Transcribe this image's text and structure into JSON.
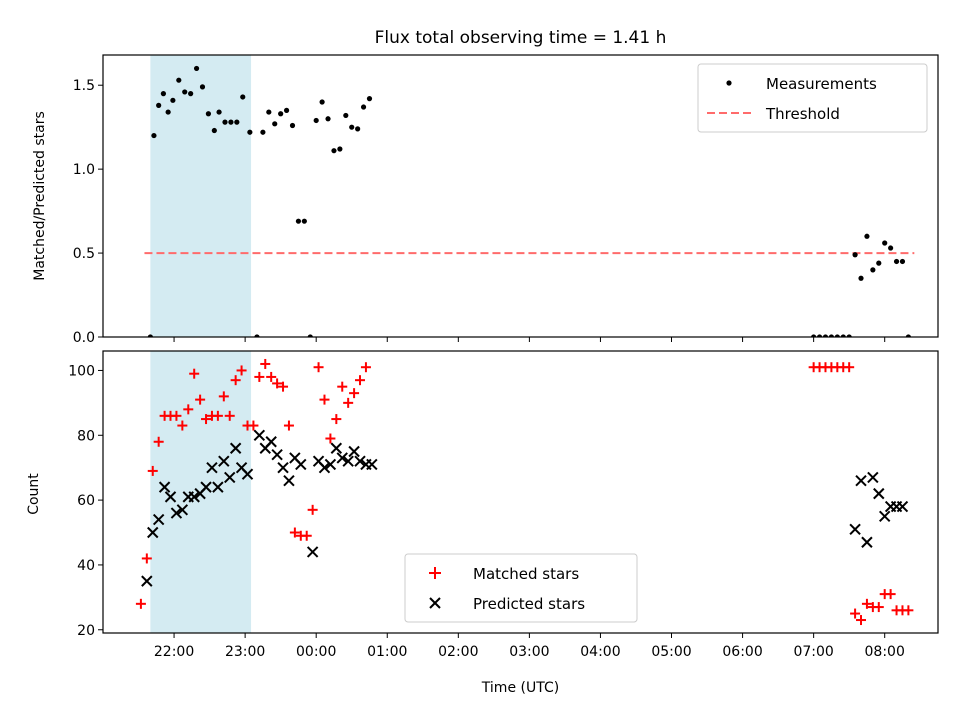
{
  "chart_data": [
    {
      "type": "scatter",
      "title": "Flux total observing time = 1.41 h",
      "xlabel": "",
      "ylabel": "Matched/Predicted stars",
      "xlim": [
        "21:00",
        "08:45"
      ],
      "ylim": [
        0,
        1.68
      ],
      "yticks": [
        0.0,
        0.5,
        1.0,
        1.5
      ],
      "ytick_labels": [
        "0.0",
        "0.5",
        "1.0",
        "1.5"
      ],
      "shaded_region": {
        "x_start": "21:40",
        "x_end": "23:05",
        "color": "#add8e6"
      },
      "legend_position": "upper right",
      "series": [
        {
          "name": "Measurements",
          "marker": "dot",
          "color": "#000000",
          "points": [
            [
              "21:40",
              0.0
            ],
            [
              "21:43",
              1.2
            ],
            [
              "21:47",
              1.38
            ],
            [
              "21:51",
              1.45
            ],
            [
              "21:55",
              1.34
            ],
            [
              "21:59",
              1.41
            ],
            [
              "22:04",
              1.53
            ],
            [
              "22:09",
              1.46
            ],
            [
              "22:14",
              1.45
            ],
            [
              "22:19",
              1.6
            ],
            [
              "22:24",
              1.49
            ],
            [
              "22:29",
              1.33
            ],
            [
              "22:34",
              1.23
            ],
            [
              "22:38",
              1.34
            ],
            [
              "22:43",
              1.28
            ],
            [
              "22:48",
              1.28
            ],
            [
              "22:53",
              1.28
            ],
            [
              "22:58",
              1.43
            ],
            [
              "23:04",
              1.22
            ],
            [
              "23:10",
              0.0
            ],
            [
              "23:15",
              1.22
            ],
            [
              "23:20",
              1.34
            ],
            [
              "23:25",
              1.27
            ],
            [
              "23:30",
              1.33
            ],
            [
              "23:35",
              1.35
            ],
            [
              "23:40",
              1.26
            ],
            [
              "23:45",
              0.69
            ],
            [
              "23:50",
              0.69
            ],
            [
              "23:55",
              0.0
            ],
            [
              "00:00",
              1.29
            ],
            [
              "00:05",
              1.4
            ],
            [
              "00:10",
              1.3
            ],
            [
              "00:15",
              1.11
            ],
            [
              "00:20",
              1.12
            ],
            [
              "00:25",
              1.32
            ],
            [
              "00:30",
              1.25
            ],
            [
              "00:35",
              1.24
            ],
            [
              "00:40",
              1.37
            ],
            [
              "00:45",
              1.42
            ],
            [
              "07:00",
              0.0
            ],
            [
              "07:05",
              0.0
            ],
            [
              "07:10",
              0.0
            ],
            [
              "07:15",
              0.0
            ],
            [
              "07:20",
              0.0
            ],
            [
              "07:25",
              0.0
            ],
            [
              "07:30",
              0.0
            ],
            [
              "07:35",
              0.49
            ],
            [
              "07:40",
              0.35
            ],
            [
              "07:45",
              0.6
            ],
            [
              "07:50",
              0.4
            ],
            [
              "07:55",
              0.44
            ],
            [
              "08:00",
              0.56
            ],
            [
              "08:05",
              0.53
            ],
            [
              "08:10",
              0.45
            ],
            [
              "08:15",
              0.45
            ],
            [
              "08:20",
              0.0
            ]
          ]
        },
        {
          "name": "Threshold",
          "style": "dashed",
          "color": "#ff6b6b",
          "points": [
            [
              "21:35",
              0.5
            ],
            [
              "08:25",
              0.5
            ]
          ]
        }
      ]
    },
    {
      "type": "scatter",
      "title": "",
      "xlabel": "Time (UTC)",
      "ylabel": "Count",
      "xlim": [
        "21:00",
        "08:45"
      ],
      "ylim": [
        19,
        106
      ],
      "yticks": [
        20,
        40,
        60,
        80,
        100
      ],
      "ytick_labels": [
        "20",
        "40",
        "60",
        "80",
        "100"
      ],
      "xticks": [
        "22:00",
        "23:00",
        "00:00",
        "01:00",
        "02:00",
        "03:00",
        "04:00",
        "05:00",
        "06:00",
        "07:00",
        "08:00"
      ],
      "shaded_region": {
        "x_start": "21:40",
        "x_end": "23:05",
        "color": "#add8e6"
      },
      "legend_position": "lower center",
      "series": [
        {
          "name": "Matched stars",
          "marker": "plus",
          "color": "#ff0000",
          "points": [
            [
              "21:32",
              28
            ],
            [
              "21:37",
              42
            ],
            [
              "21:42",
              69
            ],
            [
              "21:47",
              78
            ],
            [
              "21:52",
              86
            ],
            [
              "21:57",
              86
            ],
            [
              "22:02",
              86
            ],
            [
              "22:07",
              83
            ],
            [
              "22:12",
              88
            ],
            [
              "22:17",
              99
            ],
            [
              "22:22",
              91
            ],
            [
              "22:27",
              85
            ],
            [
              "22:32",
              86
            ],
            [
              "22:37",
              86
            ],
            [
              "22:42",
              92
            ],
            [
              "22:47",
              86
            ],
            [
              "22:52",
              97
            ],
            [
              "22:57",
              100
            ],
            [
              "23:02",
              83
            ],
            [
              "23:07",
              83
            ],
            [
              "23:12",
              98
            ],
            [
              "23:17",
              102
            ],
            [
              "23:22",
              98
            ],
            [
              "23:27",
              96
            ],
            [
              "23:32",
              95
            ],
            [
              "23:37",
              83
            ],
            [
              "23:42",
              50
            ],
            [
              "23:47",
              49
            ],
            [
              "23:52",
              49
            ],
            [
              "23:57",
              57
            ],
            [
              "00:02",
              101
            ],
            [
              "00:07",
              91
            ],
            [
              "00:12",
              79
            ],
            [
              "00:17",
              85
            ],
            [
              "00:22",
              95
            ],
            [
              "00:27",
              90
            ],
            [
              "00:32",
              93
            ],
            [
              "00:37",
              97
            ],
            [
              "00:42",
              101
            ],
            [
              "07:00",
              101
            ],
            [
              "07:05",
              101
            ],
            [
              "07:10",
              101
            ],
            [
              "07:15",
              101
            ],
            [
              "07:20",
              101
            ],
            [
              "07:25",
              101
            ],
            [
              "07:30",
              101
            ],
            [
              "07:35",
              25
            ],
            [
              "07:40",
              23
            ],
            [
              "07:45",
              28
            ],
            [
              "07:50",
              27
            ],
            [
              "07:55",
              27
            ],
            [
              "08:00",
              31
            ],
            [
              "08:05",
              31
            ],
            [
              "08:10",
              26
            ],
            [
              "08:15",
              26
            ],
            [
              "08:20",
              26
            ]
          ]
        },
        {
          "name": "Predicted stars",
          "marker": "x",
          "color": "#000000",
          "points": [
            [
              "21:37",
              35
            ],
            [
              "21:42",
              50
            ],
            [
              "21:47",
              54
            ],
            [
              "21:52",
              64
            ],
            [
              "21:57",
              61
            ],
            [
              "22:02",
              56
            ],
            [
              "22:07",
              57
            ],
            [
              "22:12",
              61
            ],
            [
              "22:17",
              61
            ],
            [
              "22:22",
              62
            ],
            [
              "22:27",
              64
            ],
            [
              "22:32",
              70
            ],
            [
              "22:37",
              64
            ],
            [
              "22:42",
              72
            ],
            [
              "22:47",
              67
            ],
            [
              "22:52",
              76
            ],
            [
              "22:57",
              70
            ],
            [
              "23:02",
              68
            ],
            [
              "23:12",
              80
            ],
            [
              "23:17",
              76
            ],
            [
              "23:22",
              78
            ],
            [
              "23:27",
              74
            ],
            [
              "23:32",
              70
            ],
            [
              "23:37",
              66
            ],
            [
              "23:42",
              73
            ],
            [
              "23:47",
              71
            ],
            [
              "23:57",
              44
            ],
            [
              "00:02",
              72
            ],
            [
              "00:07",
              70
            ],
            [
              "00:12",
              71
            ],
            [
              "00:17",
              76
            ],
            [
              "00:22",
              73
            ],
            [
              "00:27",
              72
            ],
            [
              "00:32",
              75
            ],
            [
              "00:37",
              72
            ],
            [
              "00:42",
              71
            ],
            [
              "00:47",
              71
            ],
            [
              "07:35",
              51
            ],
            [
              "07:40",
              66
            ],
            [
              "07:45",
              47
            ],
            [
              "07:50",
              67
            ],
            [
              "07:55",
              62
            ],
            [
              "08:00",
              55
            ],
            [
              "08:05",
              58
            ],
            [
              "08:10",
              58
            ],
            [
              "08:15",
              58
            ]
          ]
        }
      ]
    }
  ]
}
